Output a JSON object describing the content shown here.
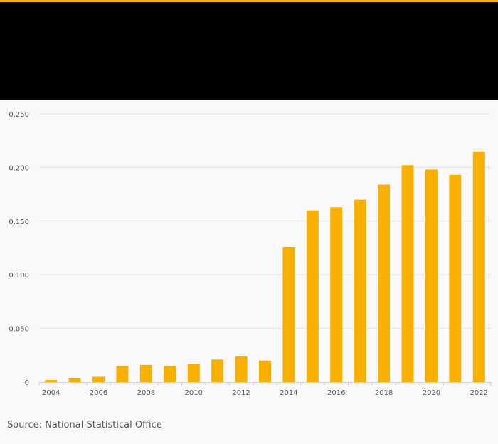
{
  "colors": {
    "accent": "#f8b000",
    "header_bg": "#000000",
    "bar": "#f8b000",
    "grid": "#e2e2e2",
    "tick_text": "#555555"
  },
  "source": "Source: National Statistical Office",
  "chart_data": {
    "type": "bar",
    "title": "",
    "xlabel": "",
    "ylabel": "",
    "ylim": [
      0,
      0.25
    ],
    "y_ticks": [
      0,
      0.05,
      0.1,
      0.15,
      0.2,
      0.25
    ],
    "y_tick_labels": [
      "0",
      "0.050",
      "0.100",
      "0.150",
      "0.200",
      "0.250"
    ],
    "categories": [
      "2004",
      "2005",
      "2006",
      "2007",
      "2008",
      "2009",
      "2010",
      "2011",
      "2012",
      "2013",
      "2014",
      "2015",
      "2016",
      "2017",
      "2018",
      "2019",
      "2020",
      "2021",
      "2022"
    ],
    "x_tick_labels": [
      "2004",
      "",
      "2006",
      "",
      "2008",
      "",
      "2010",
      "",
      "2012",
      "",
      "2014",
      "",
      "2016",
      "",
      "2018",
      "",
      "2020",
      "",
      "2022"
    ],
    "values": [
      0.002,
      0.004,
      0.005,
      0.015,
      0.016,
      0.015,
      0.017,
      0.021,
      0.024,
      0.02,
      0.126,
      0.16,
      0.163,
      0.17,
      0.184,
      0.202,
      0.198,
      0.193,
      0.215
    ]
  }
}
